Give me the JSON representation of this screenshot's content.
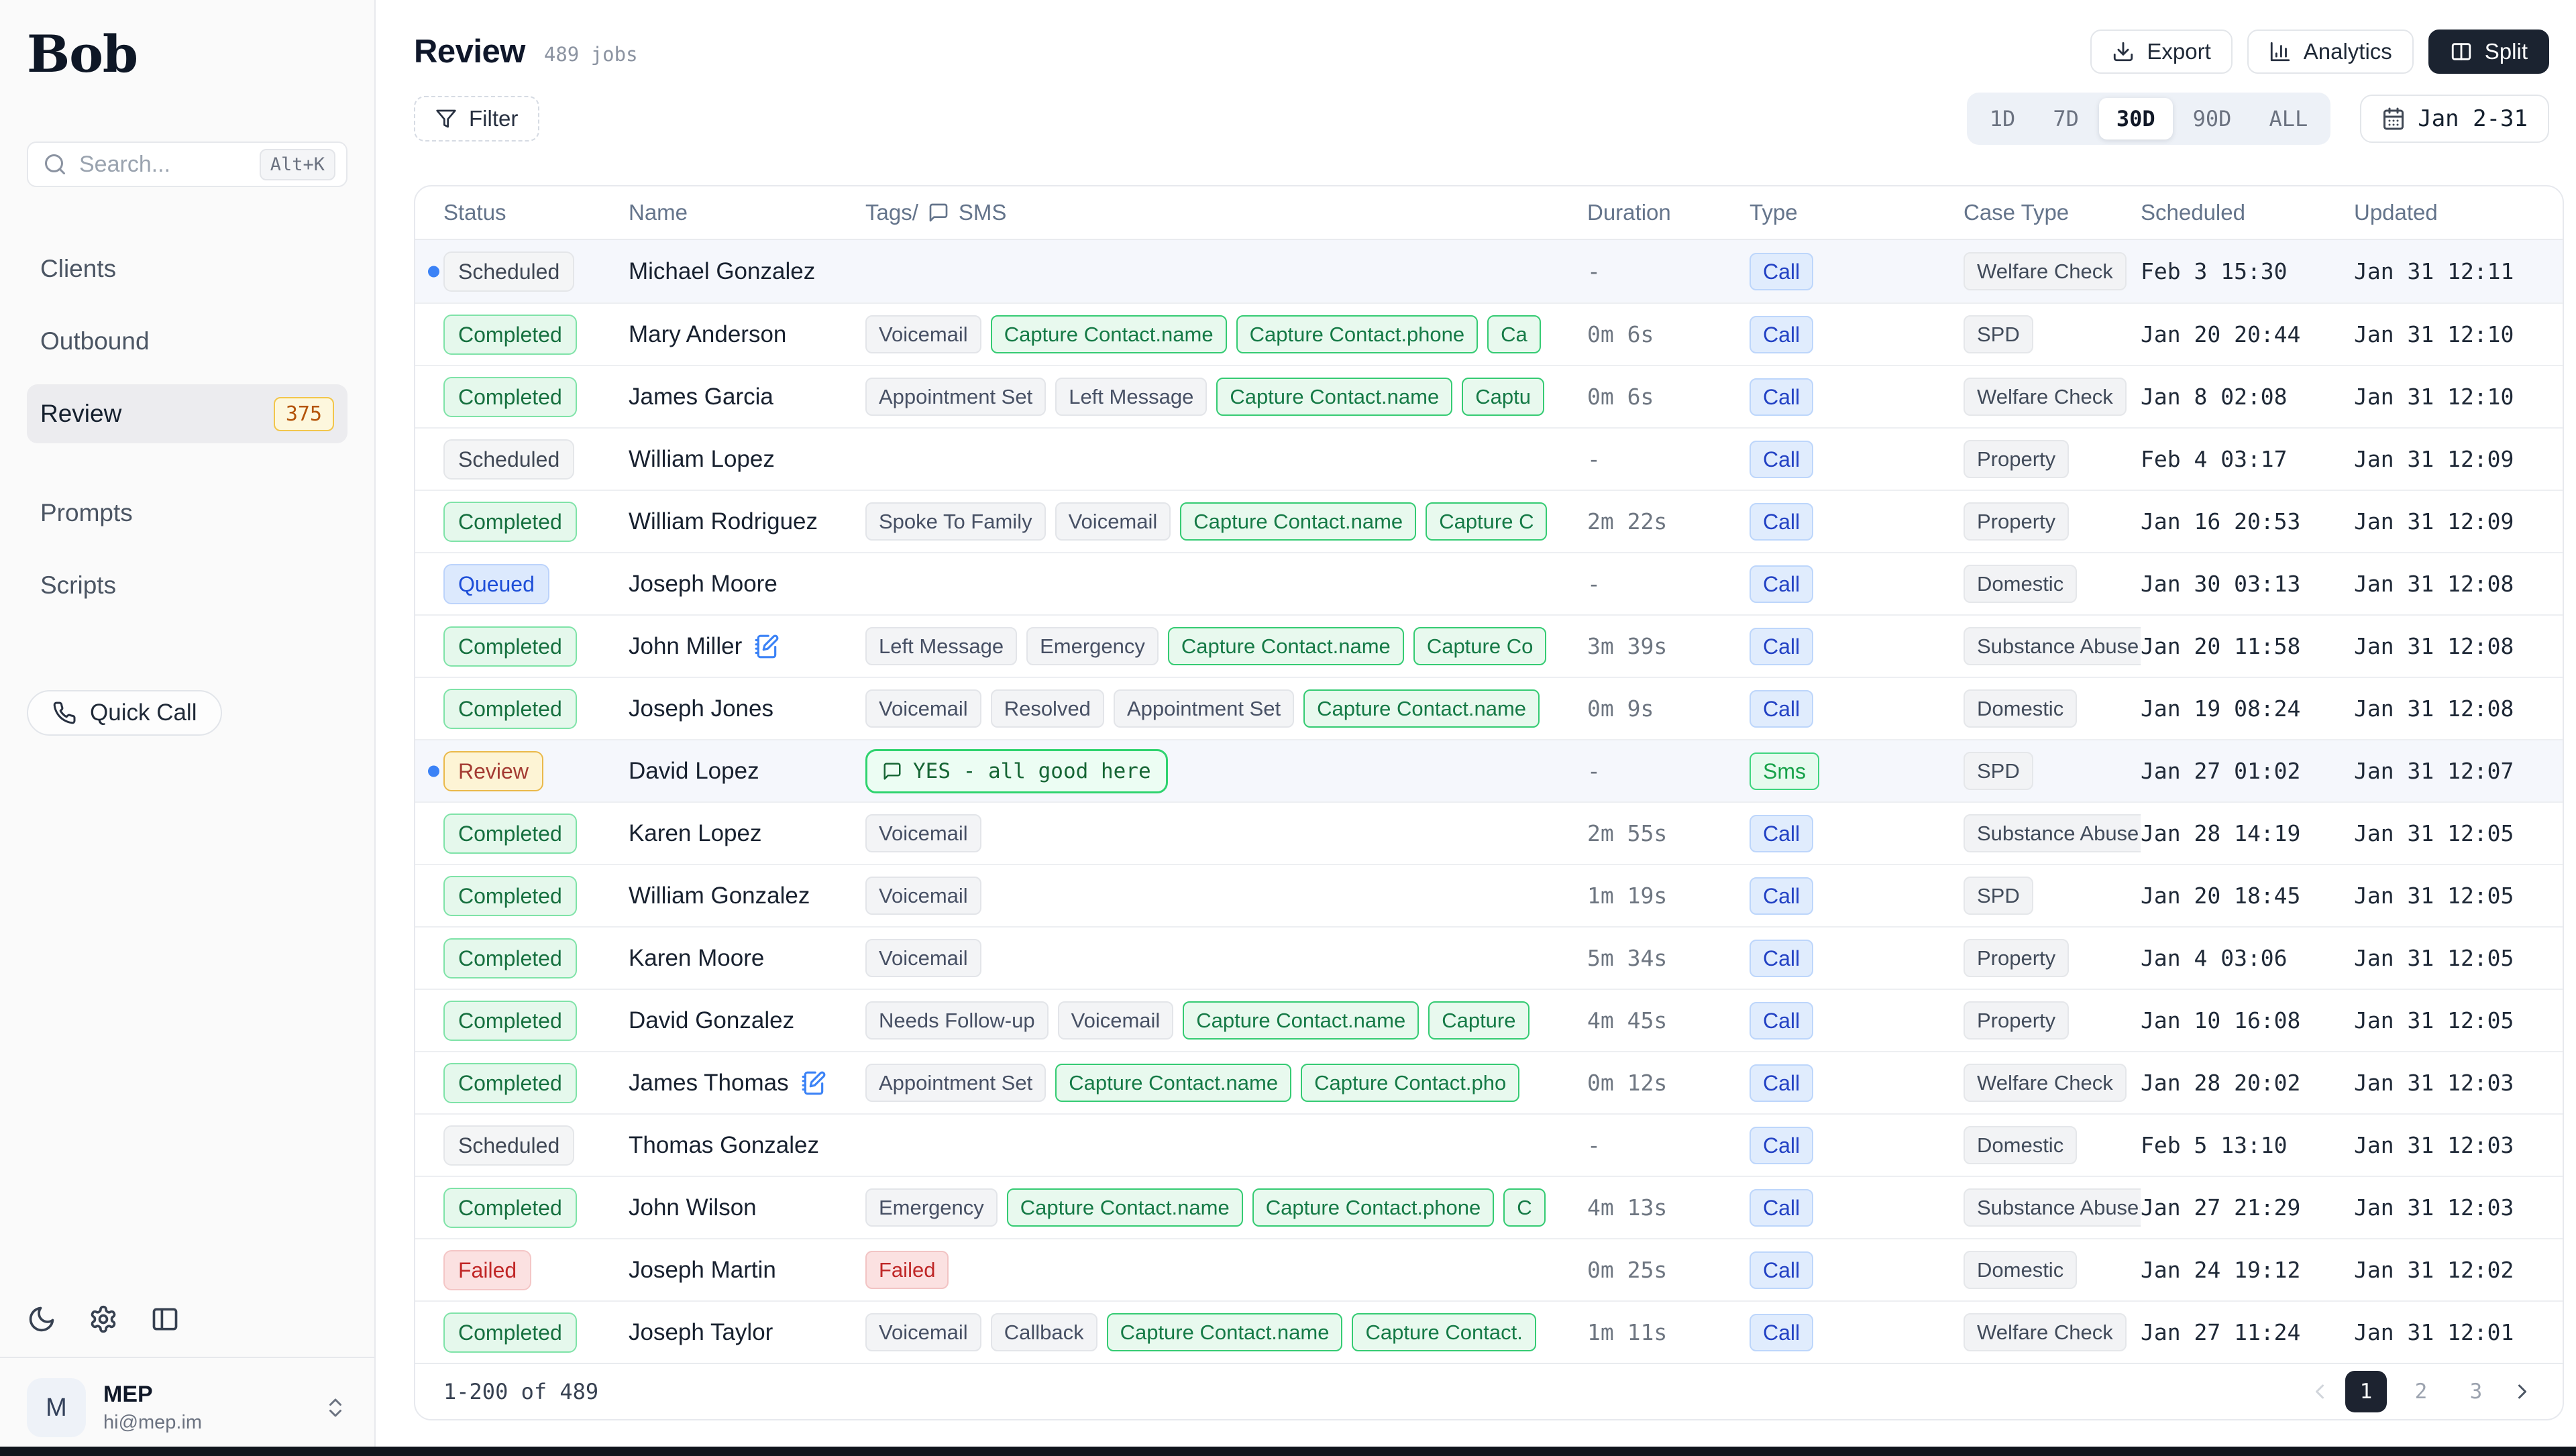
{
  "app": {
    "logo": "Bob"
  },
  "sidebar": {
    "search": {
      "placeholder": "Search...",
      "shortcut": "Alt+K"
    },
    "nav_primary": [
      {
        "label": "Clients",
        "active": false
      },
      {
        "label": "Outbound",
        "active": false
      },
      {
        "label": "Review",
        "active": true,
        "badge": "375"
      }
    ],
    "nav_secondary": [
      {
        "label": "Prompts",
        "active": false
      },
      {
        "label": "Scripts",
        "active": false
      }
    ],
    "quick_call_label": "Quick Call",
    "footer_icons": [
      "moon-icon",
      "gear-icon",
      "sidebar-panel-icon"
    ],
    "user": {
      "avatar_initial": "M",
      "name": "MEP",
      "email": "hi@mep.im"
    }
  },
  "header": {
    "title": "Review",
    "jobs_count": "489 jobs",
    "buttons": [
      {
        "label": "Export",
        "icon": "download",
        "variant": "light"
      },
      {
        "label": "Analytics",
        "icon": "chart",
        "variant": "light"
      },
      {
        "label": "Split",
        "icon": "split",
        "variant": "dark"
      }
    ]
  },
  "toolbar": {
    "filter_label": "Filter",
    "ranges": [
      {
        "label": "1D",
        "active": false
      },
      {
        "label": "7D",
        "active": false
      },
      {
        "label": "30D",
        "active": true
      },
      {
        "label": "90D",
        "active": false
      },
      {
        "label": "ALL",
        "active": false
      }
    ],
    "date_label": "Jan 2-31"
  },
  "table": {
    "columns": [
      {
        "label": "Status"
      },
      {
        "label": "Name"
      },
      {
        "label": "Tags/",
        "icon": "bubble",
        "label2": "SMS"
      },
      {
        "label": "Duration"
      },
      {
        "label": "Type"
      },
      {
        "label": "Case Type"
      },
      {
        "label": "Scheduled"
      },
      {
        "label": "Updated"
      }
    ],
    "rows": [
      {
        "dot": true,
        "highlight": true,
        "status": "Scheduled",
        "status_variant": "scheduled",
        "name": "Michael Gonzalez",
        "note": false,
        "tags": [],
        "sms": null,
        "duration": "-",
        "type": "Call",
        "type_variant": "call",
        "case_type": "Welfare Check",
        "scheduled": "Feb 3 15:30",
        "updated": "Jan 31 12:11"
      },
      {
        "dot": false,
        "highlight": false,
        "status": "Completed",
        "status_variant": "completed",
        "name": "Mary Anderson",
        "note": false,
        "tags": [
          {
            "label": "Voicemail",
            "variant": "gray"
          },
          {
            "label": "Capture Contact.name",
            "variant": "green"
          },
          {
            "label": "Capture Contact.phone",
            "variant": "green"
          },
          {
            "label": "Ca",
            "variant": "green"
          }
        ],
        "sms": null,
        "duration": "0m 6s",
        "type": "Call",
        "type_variant": "call",
        "case_type": "SPD",
        "scheduled": "Jan 20 20:44",
        "updated": "Jan 31 12:10"
      },
      {
        "dot": false,
        "highlight": false,
        "status": "Completed",
        "status_variant": "completed",
        "name": "James Garcia",
        "note": false,
        "tags": [
          {
            "label": "Appointment Set",
            "variant": "gray"
          },
          {
            "label": "Left Message",
            "variant": "gray"
          },
          {
            "label": "Capture Contact.name",
            "variant": "green"
          },
          {
            "label": "Captu",
            "variant": "green"
          }
        ],
        "sms": null,
        "duration": "0m 6s",
        "type": "Call",
        "type_variant": "call",
        "case_type": "Welfare Check",
        "scheduled": "Jan 8 02:08",
        "updated": "Jan 31 12:10"
      },
      {
        "dot": false,
        "highlight": false,
        "status": "Scheduled",
        "status_variant": "scheduled",
        "name": "William Lopez",
        "note": false,
        "tags": [],
        "sms": null,
        "duration": "-",
        "type": "Call",
        "type_variant": "call",
        "case_type": "Property",
        "scheduled": "Feb 4 03:17",
        "updated": "Jan 31 12:09"
      },
      {
        "dot": false,
        "highlight": false,
        "status": "Completed",
        "status_variant": "completed",
        "name": "William Rodriguez",
        "note": false,
        "tags": [
          {
            "label": "Spoke To Family",
            "variant": "gray"
          },
          {
            "label": "Voicemail",
            "variant": "gray"
          },
          {
            "label": "Capture Contact.name",
            "variant": "green"
          },
          {
            "label": "Capture C",
            "variant": "green"
          }
        ],
        "sms": null,
        "duration": "2m 22s",
        "type": "Call",
        "type_variant": "call",
        "case_type": "Property",
        "scheduled": "Jan 16 20:53",
        "updated": "Jan 31 12:09"
      },
      {
        "dot": false,
        "highlight": false,
        "status": "Queued",
        "status_variant": "queued",
        "name": "Joseph Moore",
        "note": false,
        "tags": [],
        "sms": null,
        "duration": "-",
        "type": "Call",
        "type_variant": "call",
        "case_type": "Domestic",
        "scheduled": "Jan 30 03:13",
        "updated": "Jan 31 12:08"
      },
      {
        "dot": false,
        "highlight": false,
        "status": "Completed",
        "status_variant": "completed",
        "name": "John Miller",
        "note": true,
        "tags": [
          {
            "label": "Left Message",
            "variant": "gray"
          },
          {
            "label": "Emergency",
            "variant": "gray"
          },
          {
            "label": "Capture Contact.name",
            "variant": "green"
          },
          {
            "label": "Capture Co",
            "variant": "green"
          }
        ],
        "sms": null,
        "duration": "3m 39s",
        "type": "Call",
        "type_variant": "call",
        "case_type": "Substance Abuse",
        "scheduled": "Jan 20 11:58",
        "updated": "Jan 31 12:08"
      },
      {
        "dot": false,
        "highlight": false,
        "status": "Completed",
        "status_variant": "completed",
        "name": "Joseph Jones",
        "note": false,
        "tags": [
          {
            "label": "Voicemail",
            "variant": "gray"
          },
          {
            "label": "Resolved",
            "variant": "gray"
          },
          {
            "label": "Appointment Set",
            "variant": "gray"
          },
          {
            "label": "Capture Contact.name",
            "variant": "green"
          }
        ],
        "sms": null,
        "duration": "0m 9s",
        "type": "Call",
        "type_variant": "call",
        "case_type": "Domestic",
        "scheduled": "Jan 19 08:24",
        "updated": "Jan 31 12:08"
      },
      {
        "dot": true,
        "highlight": true,
        "status": "Review",
        "status_variant": "review",
        "name": "David Lopez",
        "note": false,
        "tags": [],
        "sms": "YES - all good here",
        "duration": "-",
        "type": "Sms",
        "type_variant": "sms",
        "case_type": "SPD",
        "scheduled": "Jan 27 01:02",
        "updated": "Jan 31 12:07"
      },
      {
        "dot": false,
        "highlight": false,
        "status": "Completed",
        "status_variant": "completed",
        "name": "Karen Lopez",
        "note": false,
        "tags": [
          {
            "label": "Voicemail",
            "variant": "gray"
          }
        ],
        "sms": null,
        "duration": "2m 55s",
        "type": "Call",
        "type_variant": "call",
        "case_type": "Substance Abuse",
        "scheduled": "Jan 28 14:19",
        "updated": "Jan 31 12:05"
      },
      {
        "dot": false,
        "highlight": false,
        "status": "Completed",
        "status_variant": "completed",
        "name": "William Gonzalez",
        "note": false,
        "tags": [
          {
            "label": "Voicemail",
            "variant": "gray"
          }
        ],
        "sms": null,
        "duration": "1m 19s",
        "type": "Call",
        "type_variant": "call",
        "case_type": "SPD",
        "scheduled": "Jan 20 18:45",
        "updated": "Jan 31 12:05"
      },
      {
        "dot": false,
        "highlight": false,
        "status": "Completed",
        "status_variant": "completed",
        "name": "Karen Moore",
        "note": false,
        "tags": [
          {
            "label": "Voicemail",
            "variant": "gray"
          }
        ],
        "sms": null,
        "duration": "5m 34s",
        "type": "Call",
        "type_variant": "call",
        "case_type": "Property",
        "scheduled": "Jan 4 03:06",
        "updated": "Jan 31 12:05"
      },
      {
        "dot": false,
        "highlight": false,
        "status": "Completed",
        "status_variant": "completed",
        "name": "David Gonzalez",
        "note": false,
        "tags": [
          {
            "label": "Needs Follow-up",
            "variant": "gray"
          },
          {
            "label": "Voicemail",
            "variant": "gray"
          },
          {
            "label": "Capture Contact.name",
            "variant": "green"
          },
          {
            "label": "Capture",
            "variant": "green"
          }
        ],
        "sms": null,
        "duration": "4m 45s",
        "type": "Call",
        "type_variant": "call",
        "case_type": "Property",
        "scheduled": "Jan 10 16:08",
        "updated": "Jan 31 12:05"
      },
      {
        "dot": false,
        "highlight": false,
        "status": "Completed",
        "status_variant": "completed",
        "name": "James Thomas",
        "note": true,
        "tags": [
          {
            "label": "Appointment Set",
            "variant": "gray"
          },
          {
            "label": "Capture Contact.name",
            "variant": "green"
          },
          {
            "label": "Capture Contact.pho",
            "variant": "green"
          }
        ],
        "sms": null,
        "duration": "0m 12s",
        "type": "Call",
        "type_variant": "call",
        "case_type": "Welfare Check",
        "scheduled": "Jan 28 20:02",
        "updated": "Jan 31 12:03"
      },
      {
        "dot": false,
        "highlight": false,
        "status": "Scheduled",
        "status_variant": "scheduled",
        "name": "Thomas Gonzalez",
        "note": false,
        "tags": [],
        "sms": null,
        "duration": "-",
        "type": "Call",
        "type_variant": "call",
        "case_type": "Domestic",
        "scheduled": "Feb 5 13:10",
        "updated": "Jan 31 12:03"
      },
      {
        "dot": false,
        "highlight": false,
        "status": "Completed",
        "status_variant": "completed",
        "name": "John Wilson",
        "note": false,
        "tags": [
          {
            "label": "Emergency",
            "variant": "gray"
          },
          {
            "label": "Capture Contact.name",
            "variant": "green"
          },
          {
            "label": "Capture Contact.phone",
            "variant": "green"
          },
          {
            "label": "C",
            "variant": "green"
          }
        ],
        "sms": null,
        "duration": "4m 13s",
        "type": "Call",
        "type_variant": "call",
        "case_type": "Substance Abuse",
        "scheduled": "Jan 27 21:29",
        "updated": "Jan 31 12:03"
      },
      {
        "dot": false,
        "highlight": false,
        "status": "Failed",
        "status_variant": "failed",
        "name": "Joseph Martin",
        "note": false,
        "tags": [
          {
            "label": "Failed",
            "variant": "red"
          }
        ],
        "sms": null,
        "duration": "0m 25s",
        "type": "Call",
        "type_variant": "call",
        "case_type": "Domestic",
        "scheduled": "Jan 24 19:12",
        "updated": "Jan 31 12:02"
      },
      {
        "dot": false,
        "highlight": false,
        "status": "Completed",
        "status_variant": "completed",
        "name": "Joseph Taylor",
        "note": false,
        "tags": [
          {
            "label": "Voicemail",
            "variant": "gray"
          },
          {
            "label": "Callback",
            "variant": "gray"
          },
          {
            "label": "Capture Contact.name",
            "variant": "green"
          },
          {
            "label": "Capture Contact.",
            "variant": "green"
          }
        ],
        "sms": null,
        "duration": "1m 11s",
        "type": "Call",
        "type_variant": "call",
        "case_type": "Welfare Check",
        "scheduled": "Jan 27 11:24",
        "updated": "Jan 31 12:01"
      }
    ]
  },
  "footer": {
    "range": "1-200 of 489",
    "pages": [
      "1",
      "2",
      "3"
    ],
    "active_page": "1"
  },
  "colors": {
    "accent_blue": "#3b82f6",
    "dark_button": "#1b2330",
    "green_tag_border": "#35cb73",
    "review_badge_text": "#a33a32",
    "failed_text": "#c02626"
  }
}
